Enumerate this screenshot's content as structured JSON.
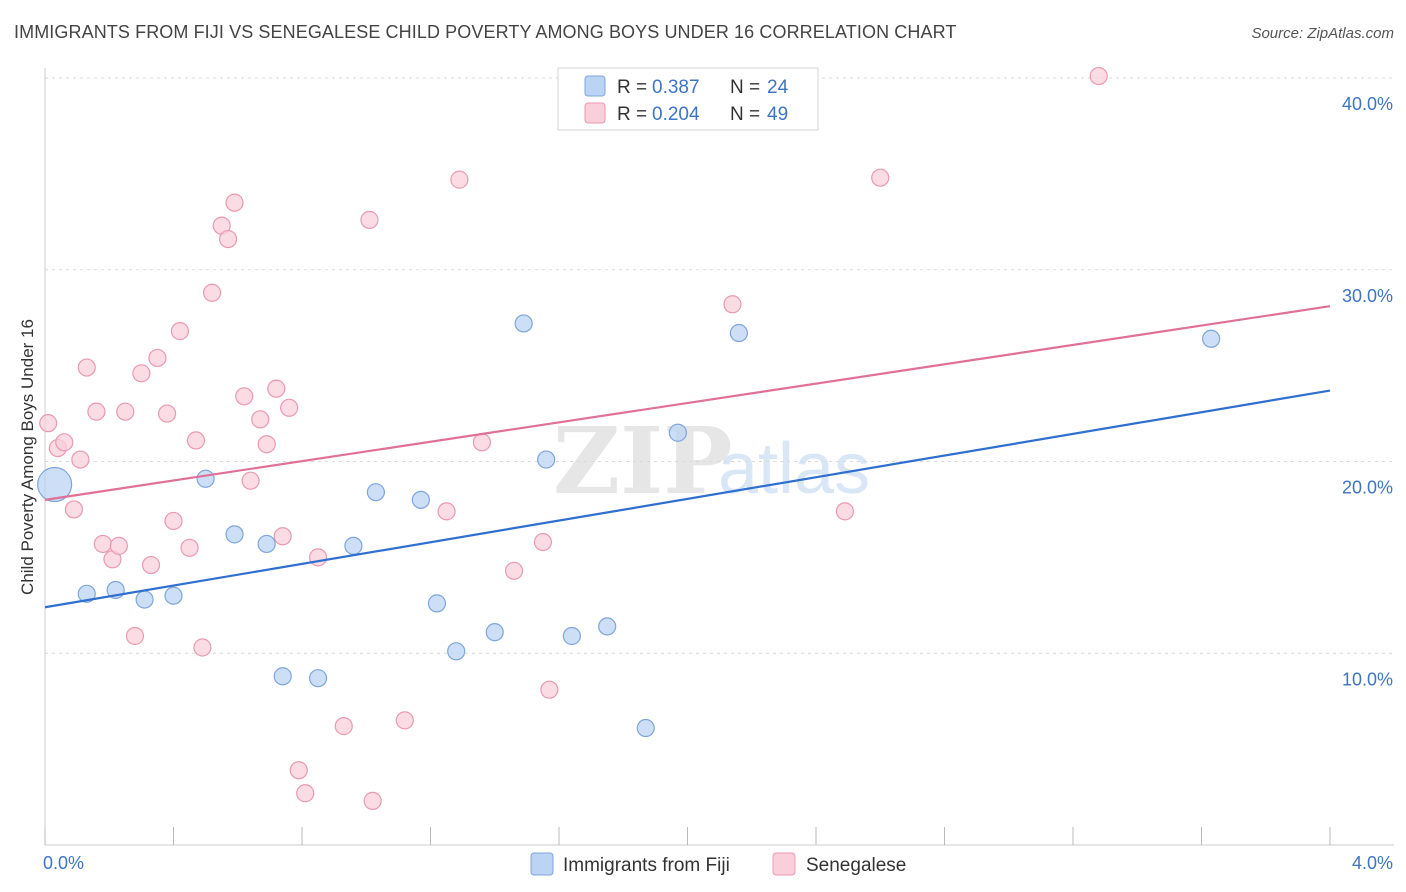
{
  "title": "IMMIGRANTS FROM FIJI VS SENEGALESE CHILD POVERTY AMONG BOYS UNDER 16 CORRELATION CHART",
  "source": "Source: ZipAtlas.com",
  "watermark": {
    "zip": "ZIP",
    "atlas": "atlas"
  },
  "colors": {
    "blue_fill": "#bcd4f3",
    "blue_stroke": "#7ea6dc",
    "blue_line": "#2f6fd0",
    "pink_fill": "#f9cfdb",
    "pink_stroke": "#ea99b2",
    "pink_line": "#e07098",
    "grid": "#d9d9d9",
    "accent_text": "#3d75c4"
  },
  "legend": {
    "rows": [
      {
        "r_label": "R = ",
        "r_value": "0.387",
        "n_label": "N = ",
        "n_value": "24",
        "series": "blue"
      },
      {
        "r_label": "R = ",
        "r_value": "0.204",
        "n_label": "N = ",
        "n_value": "49",
        "series": "pink"
      }
    ]
  },
  "chart_data": {
    "type": "scatter",
    "title": "IMMIGRANTS FROM FIJI VS SENEGALESE CHILD POVERTY AMONG BOYS UNDER 16 CORRELATION CHART",
    "xlabel": "",
    "ylabel": "Child Poverty Among Boys Under 16",
    "xlim": [
      0,
      4.0
    ],
    "ylim": [
      0,
      40
    ],
    "x_tick_labels": [
      "0.0%",
      "4.0%"
    ],
    "y_tick_labels": [
      "10.0%",
      "20.0%",
      "30.0%",
      "40.0%"
    ],
    "y_ticks": [
      10,
      20,
      30,
      40
    ],
    "grid": true,
    "legend_position": "top-center",
    "series": [
      {
        "name": "Immigrants from Fiji",
        "color": "blue",
        "R": 0.387,
        "N": 24,
        "trend": {
          "x0": 0.0,
          "y0": 12.4,
          "x1": 4.0,
          "y1": 23.7
        },
        "points": [
          {
            "x": 0.03,
            "y": 18.8,
            "big": true
          },
          {
            "x": 0.13,
            "y": 13.1
          },
          {
            "x": 0.22,
            "y": 13.3
          },
          {
            "x": 0.31,
            "y": 12.8
          },
          {
            "x": 0.4,
            "y": 13.0
          },
          {
            "x": 0.5,
            "y": 19.1
          },
          {
            "x": 0.59,
            "y": 16.2
          },
          {
            "x": 0.69,
            "y": 15.7
          },
          {
            "x": 0.74,
            "y": 8.8
          },
          {
            "x": 0.85,
            "y": 8.7
          },
          {
            "x": 0.96,
            "y": 15.6
          },
          {
            "x": 1.03,
            "y": 18.4
          },
          {
            "x": 1.17,
            "y": 18.0
          },
          {
            "x": 1.22,
            "y": 12.6
          },
          {
            "x": 1.28,
            "y": 10.1
          },
          {
            "x": 1.4,
            "y": 11.1
          },
          {
            "x": 1.49,
            "y": 27.2
          },
          {
            "x": 1.56,
            "y": 20.1
          },
          {
            "x": 1.64,
            "y": 10.9
          },
          {
            "x": 1.75,
            "y": 11.4
          },
          {
            "x": 1.87,
            "y": 6.1
          },
          {
            "x": 1.97,
            "y": 21.5
          },
          {
            "x": 2.16,
            "y": 26.7
          },
          {
            "x": 3.63,
            "y": 26.4
          }
        ]
      },
      {
        "name": "Senegalese",
        "color": "pink",
        "R": 0.204,
        "N": 49,
        "trend": {
          "x0": 0.0,
          "y0": 18.0,
          "x1": 4.0,
          "y1": 28.1
        },
        "points": [
          {
            "x": 0.01,
            "y": 22.0
          },
          {
            "x": 0.04,
            "y": 20.7
          },
          {
            "x": 0.06,
            "y": 21.0
          },
          {
            "x": 0.09,
            "y": 17.5
          },
          {
            "x": 0.11,
            "y": 20.1
          },
          {
            "x": 0.13,
            "y": 24.9
          },
          {
            "x": 0.16,
            "y": 22.6
          },
          {
            "x": 0.18,
            "y": 15.7
          },
          {
            "x": 0.21,
            "y": 14.9
          },
          {
            "x": 0.23,
            "y": 15.6
          },
          {
            "x": 0.25,
            "y": 22.6
          },
          {
            "x": 0.28,
            "y": 10.9
          },
          {
            "x": 0.3,
            "y": 24.6
          },
          {
            "x": 0.33,
            "y": 14.6
          },
          {
            "x": 0.35,
            "y": 25.4
          },
          {
            "x": 0.38,
            "y": 22.5
          },
          {
            "x": 0.4,
            "y": 16.9
          },
          {
            "x": 0.42,
            "y": 26.8
          },
          {
            "x": 0.45,
            "y": 15.5
          },
          {
            "x": 0.47,
            "y": 21.1
          },
          {
            "x": 0.49,
            "y": 10.3
          },
          {
            "x": 0.52,
            "y": 28.8
          },
          {
            "x": 0.55,
            "y": 32.3
          },
          {
            "x": 0.57,
            "y": 31.6
          },
          {
            "x": 0.59,
            "y": 33.5
          },
          {
            "x": 0.62,
            "y": 23.4
          },
          {
            "x": 0.64,
            "y": 19.0
          },
          {
            "x": 0.67,
            "y": 22.2
          },
          {
            "x": 0.69,
            "y": 20.9
          },
          {
            "x": 0.72,
            "y": 23.8
          },
          {
            "x": 0.74,
            "y": 16.1
          },
          {
            "x": 0.76,
            "y": 22.8
          },
          {
            "x": 0.79,
            "y": 3.9
          },
          {
            "x": 0.81,
            "y": 2.7
          },
          {
            "x": 0.85,
            "y": 15.0
          },
          {
            "x": 0.93,
            "y": 6.2
          },
          {
            "x": 1.01,
            "y": 32.6
          },
          {
            "x": 1.02,
            "y": 2.3
          },
          {
            "x": 1.12,
            "y": 6.5
          },
          {
            "x": 1.25,
            "y": 17.4
          },
          {
            "x": 1.29,
            "y": 34.7
          },
          {
            "x": 1.36,
            "y": 21.0
          },
          {
            "x": 1.46,
            "y": 14.3
          },
          {
            "x": 1.55,
            "y": 15.8
          },
          {
            "x": 1.57,
            "y": 8.1
          },
          {
            "x": 2.14,
            "y": 28.2
          },
          {
            "x": 2.49,
            "y": 17.4
          },
          {
            "x": 2.6,
            "y": 34.8
          },
          {
            "x": 3.28,
            "y": 40.1
          }
        ]
      }
    ]
  }
}
